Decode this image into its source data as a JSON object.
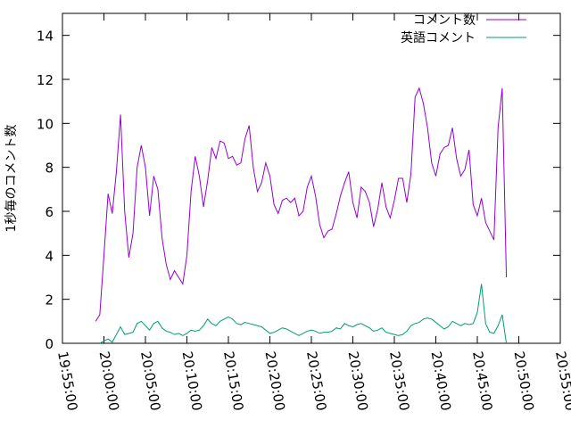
{
  "chart_data": {
    "type": "line",
    "title": "",
    "xlabel": "",
    "ylabel": "1秒毎のコメント数",
    "xlim": [
      "19:55:00",
      "20:55:00"
    ],
    "ylim": [
      0,
      15
    ],
    "grid": false,
    "legend_position": "top-right",
    "x_ticks": [
      "19:55:00",
      "20:00:00",
      "20:05:00",
      "20:10:00",
      "20:15:00",
      "20:20:00",
      "20:25:00",
      "20:30:00",
      "20:35:00",
      "20:40:00",
      "20:45:00",
      "20:50:00",
      "20:55:00"
    ],
    "y_ticks": [
      "0",
      "2",
      "4",
      "6",
      "8",
      "10",
      "12",
      "14"
    ],
    "series": [
      {
        "name": "コメント数",
        "color": "#9400d3",
        "points": [
          [
            "19:59:00",
            1.0
          ],
          [
            "19:59:30",
            1.3
          ],
          [
            "20:00:00",
            4.0
          ],
          [
            "20:00:30",
            6.8
          ],
          [
            "20:01:00",
            5.9
          ],
          [
            "20:01:30",
            7.8
          ],
          [
            "20:02:00",
            10.4
          ],
          [
            "20:02:30",
            6.0
          ],
          [
            "20:03:00",
            3.9
          ],
          [
            "20:03:30",
            5.0
          ],
          [
            "20:04:00",
            8.0
          ],
          [
            "20:04:30",
            9.0
          ],
          [
            "20:05:00",
            8.0
          ],
          [
            "20:05:30",
            5.8
          ],
          [
            "20:06:00",
            7.6
          ],
          [
            "20:06:30",
            7.0
          ],
          [
            "20:07:00",
            4.8
          ],
          [
            "20:07:30",
            3.6
          ],
          [
            "20:08:00",
            2.9
          ],
          [
            "20:08:30",
            3.3
          ],
          [
            "20:09:00",
            3.0
          ],
          [
            "20:09:30",
            2.7
          ],
          [
            "20:10:00",
            4.0
          ],
          [
            "20:10:30",
            6.9
          ],
          [
            "20:11:00",
            8.5
          ],
          [
            "20:11:30",
            7.6
          ],
          [
            "20:12:00",
            6.2
          ],
          [
            "20:12:30",
            7.4
          ],
          [
            "20:13:00",
            8.9
          ],
          [
            "20:13:30",
            8.4
          ],
          [
            "20:14:00",
            9.2
          ],
          [
            "20:14:30",
            9.1
          ],
          [
            "20:15:00",
            8.4
          ],
          [
            "20:15:30",
            8.5
          ],
          [
            "20:16:00",
            8.1
          ],
          [
            "20:16:30",
            8.2
          ],
          [
            "20:17:00",
            9.3
          ],
          [
            "20:17:30",
            9.9
          ],
          [
            "20:18:00",
            8.0
          ],
          [
            "20:18:30",
            6.9
          ],
          [
            "20:19:00",
            7.3
          ],
          [
            "20:19:30",
            8.2
          ],
          [
            "20:20:00",
            7.6
          ],
          [
            "20:20:30",
            6.3
          ],
          [
            "20:21:00",
            5.9
          ],
          [
            "20:21:30",
            6.5
          ],
          [
            "20:22:00",
            6.6
          ],
          [
            "20:22:30",
            6.4
          ],
          [
            "20:23:00",
            6.6
          ],
          [
            "20:23:30",
            5.8
          ],
          [
            "20:24:00",
            6.0
          ],
          [
            "20:24:30",
            7.1
          ],
          [
            "20:25:00",
            7.6
          ],
          [
            "20:25:30",
            6.7
          ],
          [
            "20:26:00",
            5.4
          ],
          [
            "20:26:30",
            4.8
          ],
          [
            "20:27:00",
            5.1
          ],
          [
            "20:27:30",
            5.2
          ],
          [
            "20:28:00",
            5.9
          ],
          [
            "20:28:30",
            6.7
          ],
          [
            "20:29:00",
            7.3
          ],
          [
            "20:29:30",
            7.8
          ],
          [
            "20:30:00",
            6.4
          ],
          [
            "20:30:30",
            5.7
          ],
          [
            "20:31:00",
            7.1
          ],
          [
            "20:31:30",
            6.9
          ],
          [
            "20:32:00",
            6.4
          ],
          [
            "20:32:30",
            5.3
          ],
          [
            "20:33:00",
            6.1
          ],
          [
            "20:33:30",
            7.3
          ],
          [
            "20:34:00",
            6.2
          ],
          [
            "20:34:30",
            5.7
          ],
          [
            "20:35:00",
            6.5
          ],
          [
            "20:35:30",
            7.5
          ],
          [
            "20:36:00",
            7.5
          ],
          [
            "20:36:30",
            6.4
          ],
          [
            "20:37:00",
            7.7
          ],
          [
            "20:37:30",
            11.2
          ],
          [
            "20:38:00",
            11.6
          ],
          [
            "20:38:30",
            10.9
          ],
          [
            "20:39:00",
            9.8
          ],
          [
            "20:39:30",
            8.2
          ],
          [
            "20:40:00",
            7.6
          ],
          [
            "20:40:30",
            8.6
          ],
          [
            "20:41:00",
            8.9
          ],
          [
            "20:41:30",
            9.0
          ],
          [
            "20:42:00",
            9.8
          ],
          [
            "20:42:30",
            8.4
          ],
          [
            "20:43:00",
            7.6
          ],
          [
            "20:43:30",
            7.9
          ],
          [
            "20:44:00",
            8.8
          ],
          [
            "20:44:30",
            6.3
          ],
          [
            "20:45:00",
            5.8
          ],
          [
            "20:45:30",
            6.6
          ],
          [
            "20:46:00",
            5.5
          ],
          [
            "20:46:30",
            5.1
          ],
          [
            "20:47:00",
            4.7
          ],
          [
            "20:47:30",
            9.8
          ],
          [
            "20:48:00",
            11.6
          ],
          [
            "20:48:30",
            3.0
          ]
        ]
      },
      {
        "name": "英語コメント",
        "color": "#009e73",
        "points": [
          [
            "19:59:30",
            0.0
          ],
          [
            "20:00:00",
            0.1
          ],
          [
            "20:00:30",
            0.2
          ],
          [
            "20:01:00",
            0.05
          ],
          [
            "20:01:30",
            0.4
          ],
          [
            "20:02:00",
            0.75
          ],
          [
            "20:02:30",
            0.4
          ],
          [
            "20:03:00",
            0.45
          ],
          [
            "20:03:30",
            0.5
          ],
          [
            "20:04:00",
            0.9
          ],
          [
            "20:04:30",
            1.0
          ],
          [
            "20:05:00",
            0.8
          ],
          [
            "20:05:30",
            0.6
          ],
          [
            "20:06:00",
            0.9
          ],
          [
            "20:06:30",
            1.0
          ],
          [
            "20:07:00",
            0.7
          ],
          [
            "20:07:30",
            0.55
          ],
          [
            "20:08:00",
            0.5
          ],
          [
            "20:08:30",
            0.4
          ],
          [
            "20:09:00",
            0.45
          ],
          [
            "20:09:30",
            0.35
          ],
          [
            "20:10:00",
            0.45
          ],
          [
            "20:10:30",
            0.6
          ],
          [
            "20:11:00",
            0.55
          ],
          [
            "20:11:30",
            0.6
          ],
          [
            "20:12:00",
            0.8
          ],
          [
            "20:12:30",
            1.1
          ],
          [
            "20:13:00",
            0.9
          ],
          [
            "20:13:30",
            0.8
          ],
          [
            "20:14:00",
            1.0
          ],
          [
            "20:14:30",
            1.1
          ],
          [
            "20:15:00",
            1.2
          ],
          [
            "20:15:30",
            1.1
          ],
          [
            "20:16:00",
            0.9
          ],
          [
            "20:16:30",
            0.85
          ],
          [
            "20:17:00",
            0.95
          ],
          [
            "20:17:30",
            0.9
          ],
          [
            "20:18:00",
            0.85
          ],
          [
            "20:18:30",
            0.8
          ],
          [
            "20:19:00",
            0.75
          ],
          [
            "20:19:30",
            0.6
          ],
          [
            "20:20:00",
            0.45
          ],
          [
            "20:20:30",
            0.5
          ],
          [
            "20:21:00",
            0.6
          ],
          [
            "20:21:30",
            0.7
          ],
          [
            "20:22:00",
            0.65
          ],
          [
            "20:22:30",
            0.55
          ],
          [
            "20:23:00",
            0.45
          ],
          [
            "20:23:30",
            0.35
          ],
          [
            "20:24:00",
            0.45
          ],
          [
            "20:24:30",
            0.55
          ],
          [
            "20:25:00",
            0.6
          ],
          [
            "20:25:30",
            0.55
          ],
          [
            "20:26:00",
            0.45
          ],
          [
            "20:26:30",
            0.5
          ],
          [
            "20:27:00",
            0.5
          ],
          [
            "20:27:30",
            0.55
          ],
          [
            "20:28:00",
            0.7
          ],
          [
            "20:28:30",
            0.65
          ],
          [
            "20:29:00",
            0.9
          ],
          [
            "20:29:30",
            0.8
          ],
          [
            "20:30:00",
            0.75
          ],
          [
            "20:30:30",
            0.85
          ],
          [
            "20:31:00",
            0.9
          ],
          [
            "20:31:30",
            0.8
          ],
          [
            "20:32:00",
            0.7
          ],
          [
            "20:32:30",
            0.55
          ],
          [
            "20:33:00",
            0.6
          ],
          [
            "20:33:30",
            0.7
          ],
          [
            "20:34:00",
            0.5
          ],
          [
            "20:34:30",
            0.45
          ],
          [
            "20:35:00",
            0.4
          ],
          [
            "20:35:30",
            0.35
          ],
          [
            "20:36:00",
            0.4
          ],
          [
            "20:36:30",
            0.55
          ],
          [
            "20:37:00",
            0.8
          ],
          [
            "20:37:30",
            0.9
          ],
          [
            "20:38:00",
            0.95
          ],
          [
            "20:38:30",
            1.1
          ],
          [
            "20:39:00",
            1.15
          ],
          [
            "20:39:30",
            1.1
          ],
          [
            "20:40:00",
            0.95
          ],
          [
            "20:40:30",
            0.8
          ],
          [
            "20:41:00",
            0.65
          ],
          [
            "20:41:30",
            0.75
          ],
          [
            "20:42:00",
            1.0
          ],
          [
            "20:42:30",
            0.9
          ],
          [
            "20:43:00",
            0.8
          ],
          [
            "20:43:30",
            0.9
          ],
          [
            "20:44:00",
            0.85
          ],
          [
            "20:44:30",
            0.9
          ],
          [
            "20:45:00",
            1.4
          ],
          [
            "20:45:30",
            2.7
          ],
          [
            "20:46:00",
            0.9
          ],
          [
            "20:46:30",
            0.5
          ],
          [
            "20:47:00",
            0.45
          ],
          [
            "20:47:30",
            0.8
          ],
          [
            "20:48:00",
            1.3
          ],
          [
            "20:48:30",
            0.0
          ]
        ]
      }
    ]
  }
}
